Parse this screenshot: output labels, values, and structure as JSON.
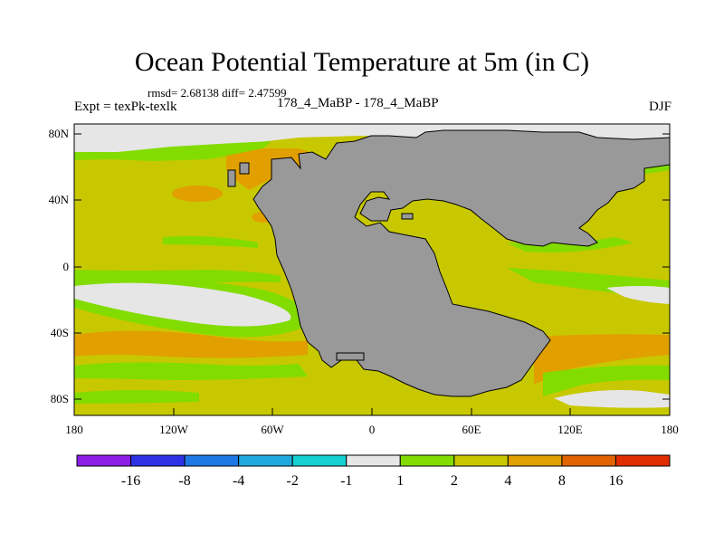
{
  "title": "Ocean Potential Temperature at 5m (in C)",
  "stats": "rmsd= 2.68138 diff= 2.47599",
  "expt": "Expt = texPk-texlk",
  "run_label": "178_4_MaBP - 178_4_MaBP",
  "season": "DJF",
  "lat_ticks": [
    "80N",
    "40N",
    "0",
    "40S",
    "80S"
  ],
  "lon_ticks": [
    "180",
    "120W",
    "60W",
    "0",
    "60E",
    "120E",
    "180"
  ],
  "colorbar": {
    "colors": [
      "#8c1ee6",
      "#2d32e6",
      "#1e78e6",
      "#1eaadc",
      "#14d2d2",
      "#e6e6e6",
      "#82dc00",
      "#c8c800",
      "#e1a000",
      "#e16400",
      "#e12d00"
    ],
    "labels": [
      "-16",
      "-8",
      "-4",
      "-2",
      "-1",
      "1",
      "2",
      "4",
      "8",
      "16"
    ]
  },
  "map_colors": {
    "land": "#999999",
    "base": "#c8c800",
    "warm": "#e1a000",
    "cool": "#82dc00",
    "neutral": "#e6e6e6"
  }
}
